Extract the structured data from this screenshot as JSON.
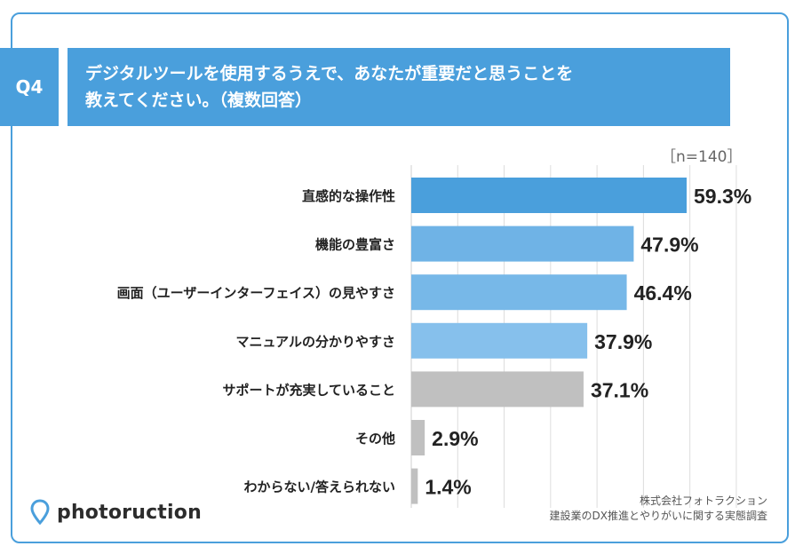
{
  "question": {
    "badge": "Q4",
    "line1": "デジタルツールを使用するうえで、あなたが重要だと思うことを",
    "line2": "教えてください。（複数回答）"
  },
  "sample_size": "［n=140］",
  "chart_data": {
    "type": "bar",
    "orientation": "horizontal",
    "categories": [
      "直感的な操作性",
      "機能の豊富さ",
      "画面（ユーザーインターフェイス）の見やすさ",
      "マニュアルの分かりやすさ",
      "サポートが充実していること",
      "その他",
      "わからない/答えられない"
    ],
    "values": [
      59.3,
      47.9,
      46.4,
      37.9,
      37.1,
      2.9,
      1.4
    ],
    "value_labels": [
      "59.3%",
      "47.9%",
      "46.4%",
      "37.9%",
      "37.1%",
      "2.9%",
      "1.4%"
    ],
    "xlim": [
      0,
      70
    ],
    "grid": true,
    "colors": [
      "#4a9fdc",
      "#6fb3e6",
      "#77b8e8",
      "#86c0ec",
      "#c0c0c0",
      "#c0c0c0",
      "#c0c0c0"
    ]
  },
  "brand": {
    "name": "photoruction",
    "accent": "#4a9fdc"
  },
  "source": {
    "line1": "株式会社フォトラクション",
    "line2": "建設業のDX推進とやりがいに関する実態調査"
  }
}
